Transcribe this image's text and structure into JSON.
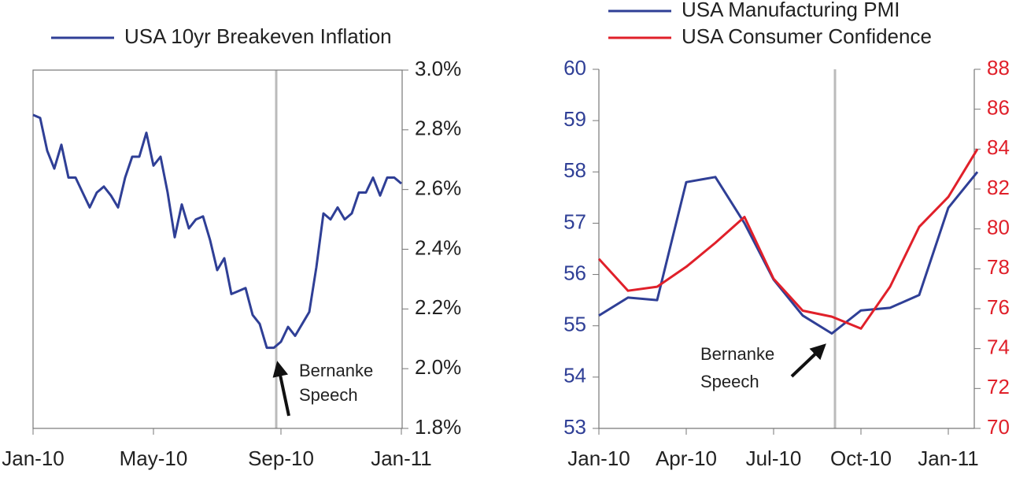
{
  "chart_data": [
    {
      "type": "line",
      "categories": [
        "Jan-10",
        null,
        null,
        null,
        null,
        null,
        null,
        null,
        null,
        null,
        null,
        null,
        null,
        null,
        null,
        null,
        null,
        "May-10",
        null,
        null,
        null,
        null,
        null,
        null,
        null,
        null,
        null,
        null,
        null,
        null,
        null,
        null,
        null,
        null,
        null,
        "Sep-10",
        null,
        null,
        null,
        null,
        null,
        null,
        null,
        null,
        null,
        null,
        null,
        null,
        null,
        null,
        null,
        null,
        "Jan-11"
      ],
      "series": [
        {
          "name": "USA 10yr Breakeven Inflation",
          "color": "#2f3f96",
          "values": [
            2.85,
            2.84,
            2.73,
            2.67,
            2.75,
            2.64,
            2.64,
            2.59,
            2.54,
            2.59,
            2.61,
            2.58,
            2.54,
            2.64,
            2.71,
            2.71,
            2.79,
            2.68,
            2.71,
            2.59,
            2.44,
            2.55,
            2.47,
            2.5,
            2.51,
            2.43,
            2.33,
            2.37,
            2.25,
            2.26,
            2.27,
            2.18,
            2.15,
            2.07,
            2.07,
            2.09,
            2.14,
            2.11,
            2.15,
            2.19,
            2.34,
            2.52,
            2.5,
            2.54,
            2.5,
            2.52,
            2.59,
            2.59,
            2.64,
            2.58,
            2.64,
            2.64,
            2.62
          ]
        }
      ],
      "ylim": [
        1.8,
        3.0
      ],
      "yticks": [
        {
          "value": 1.8,
          "label": "1.8%"
        },
        {
          "value": 2.0,
          "label": "2.0%"
        },
        {
          "value": 2.2,
          "label": "2.2%"
        },
        {
          "value": 2.4,
          "label": "2.4%"
        },
        {
          "value": 2.6,
          "label": "2.6%"
        },
        {
          "value": 2.8,
          "label": "2.8%"
        },
        {
          "value": 3.0,
          "label": "3.0%"
        }
      ],
      "annotation": [
        "Bernanke",
        "Speech"
      ]
    },
    {
      "type": "line",
      "categories": [
        "Jan-10",
        null,
        null,
        "Apr-10",
        null,
        null,
        "Jul-10",
        null,
        null,
        "Oct-10",
        null,
        null,
        "Jan-11",
        null
      ],
      "series": [
        {
          "name": "USA Manufacturing PMI",
          "color": "#2f3f96",
          "values": [
            55.2,
            55.55,
            55.5,
            57.8,
            57.9,
            57.0,
            55.9,
            55.2,
            54.85,
            55.3,
            55.35,
            55.6,
            57.3,
            58.0
          ]
        },
        {
          "name": "USA Consumer Confidence",
          "color": "#e0202a",
          "axis": "y2",
          "values": [
            78.5,
            76.9,
            77.1,
            78.1,
            79.3,
            80.6,
            77.5,
            75.9,
            75.6,
            75.0,
            77.1,
            80.1,
            81.6,
            84.0
          ]
        }
      ],
      "ylim": [
        53,
        60
      ],
      "yticks": [
        53,
        54,
        55,
        56,
        57,
        58,
        59,
        60
      ],
      "y2lim": [
        70,
        88
      ],
      "y2ticks": [
        70,
        72,
        74,
        76,
        78,
        80,
        82,
        84,
        86,
        88
      ],
      "annotation": [
        "Bernanke",
        "Speech"
      ]
    }
  ]
}
